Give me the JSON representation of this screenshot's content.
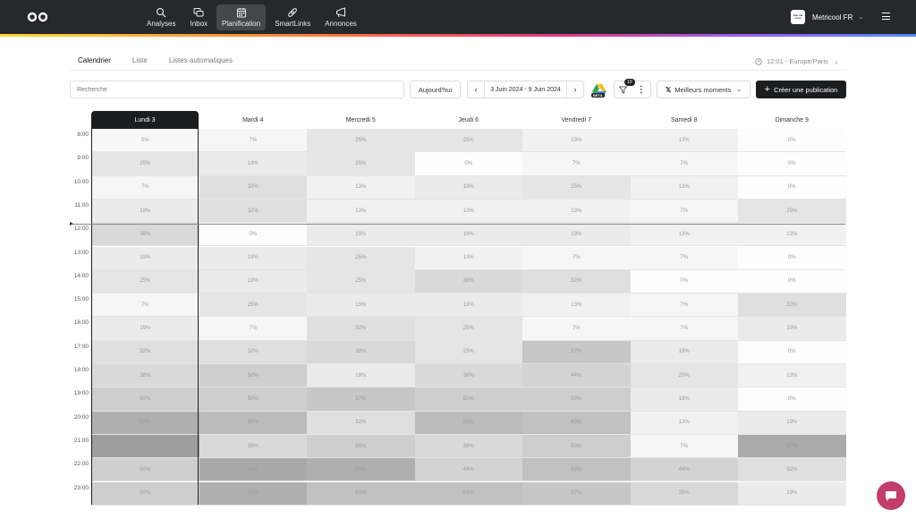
{
  "nav": {
    "items": [
      {
        "label": "Analyses",
        "icon": "analytics-icon"
      },
      {
        "label": "Inbox",
        "icon": "inbox-icon"
      },
      {
        "label": "Planification",
        "icon": "calendar-icon",
        "active": true
      },
      {
        "label": "SmartLinks",
        "icon": "link-icon"
      },
      {
        "label": "Annonces",
        "icon": "megaphone-icon"
      }
    ],
    "account_name": "Metricool FR",
    "account_logo_text": "mar cal coun"
  },
  "tabs": [
    {
      "label": "Calendrier",
      "active": true
    },
    {
      "label": "Liste",
      "active": false
    },
    {
      "label": "Listes automatiques",
      "active": false
    }
  ],
  "timezone": "12:01 - Europe/Paris",
  "toolbar": {
    "search_placeholder": "Recherche",
    "today_label": "Aujourd'hui",
    "date_range": "3 Juin 2024 - 9 Juin 2024",
    "beta_label": "BETA",
    "filter_count": "10",
    "best_moments_label": "Meilleurs moments",
    "create_label": "Créer une publication"
  },
  "calendar": {
    "days": [
      "Lundi 3",
      "Mardi 4",
      "Mercredi 5",
      "Jeudi 6",
      "Vendredi 7",
      "Samedi 8",
      "Dimanche 9"
    ],
    "today_index": 0,
    "hours": [
      "8:00",
      "9:00",
      "10:00",
      "11:00",
      "12:00",
      "13:00",
      "14:00",
      "15:00",
      "16:00",
      "17:00",
      "18:00",
      "19:00",
      "20:00",
      "21:00",
      "22:00",
      "23:00"
    ],
    "current_time_hour": 12.02,
    "values": [
      [
        "5%",
        "7%",
        "25%",
        "25%",
        "13%",
        "13%",
        "0%"
      ],
      [
        "25%",
        "19%",
        "25%",
        "0%",
        "7%",
        "7%",
        "0%"
      ],
      [
        "7%",
        "32%",
        "13%",
        "19%",
        "25%",
        "13%",
        "0%"
      ],
      [
        "19%",
        "32%",
        "13%",
        "13%",
        "13%",
        "7%",
        "25%"
      ],
      [
        "38%",
        "0%",
        "19%",
        "19%",
        "19%",
        "13%",
        "13%"
      ],
      [
        "19%",
        "19%",
        "25%",
        "13%",
        "7%",
        "7%",
        "0%"
      ],
      [
        "25%",
        "19%",
        "25%",
        "38%",
        "32%",
        "0%",
        "0%"
      ],
      [
        "7%",
        "25%",
        "19%",
        "19%",
        "13%",
        "7%",
        "32%"
      ],
      [
        "19%",
        "7%",
        "32%",
        "25%",
        "7%",
        "7%",
        "19%"
      ],
      [
        "32%",
        "32%",
        "38%",
        "25%",
        "57%",
        "19%",
        "0%"
      ],
      [
        "38%",
        "50%",
        "19%",
        "38%",
        "44%",
        "25%",
        "13%"
      ],
      [
        "50%",
        "50%",
        "57%",
        "50%",
        "50%",
        "19%",
        "0%"
      ],
      [
        "82%",
        "69%",
        "32%",
        "69%",
        "63%",
        "13%",
        "19%"
      ],
      [
        "100%",
        "38%",
        "50%",
        "38%",
        "50%",
        "7%",
        "87%"
      ],
      [
        "50%",
        "88%",
        "82%",
        "44%",
        "63%",
        "44%",
        "32%"
      ],
      [
        "50%",
        "82%",
        "63%",
        "63%",
        "57%",
        "38%",
        "19%"
      ]
    ]
  }
}
